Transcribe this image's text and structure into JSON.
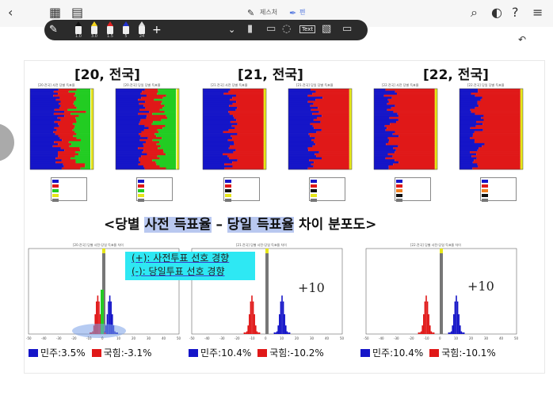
{
  "toolbar": {
    "eraser_label": "제스처",
    "pen_label": "펜",
    "pen_sizes": [
      "1.0",
      "3.0",
      "1.5",
      "5",
      "24"
    ],
    "text_tool": "Text"
  },
  "charts": {
    "year_titles": [
      "[20, 전국]",
      "[21, 전국]",
      "[22, 전국]"
    ],
    "mini_titles": [
      "[20.전국] 사전 당별 득표율",
      "[20.전국] 당일 당별 득표율",
      "[21.전국] 사전 당별 득표율",
      "[21.전국] 당일 당별 득표율",
      "[22.전국] 사전 당별 득표율",
      "[22.전국] 당일 당별 득표율"
    ],
    "hist_titles": [
      "[20.전국] 당별 사전-당일 득표율 차이",
      "[21.전국] 당별 사전-당일 득표율 차이",
      "[22.전국] 당별 사전-당일 득표율 차이"
    ]
  },
  "section": {
    "prefix": "<당별 ",
    "hl1": "사전 득표율",
    "mid": " – ",
    "hl2": "당일 득표율",
    "suffix": " 차이 분포도>"
  },
  "callout": {
    "line1": "(+): 사전투표 선호 경향",
    "line2": "(-): 당일투표 선호 경향"
  },
  "annotations": [
    "+10",
    "+10"
  ],
  "legend": [
    {
      "dem": "민주:3.5%",
      "ppp": "국힘:-3.1%"
    },
    {
      "dem": "민주:10.4%",
      "ppp": "국힘:-10.2%"
    },
    {
      "dem": "민주:10.4%",
      "ppp": "국힘:-10.1%"
    }
  ],
  "colors": {
    "dem": "#1515c8",
    "ppp": "#e01818",
    "green": "#22cc22",
    "yellow": "#e6e61a",
    "gray": "#777777"
  }
}
